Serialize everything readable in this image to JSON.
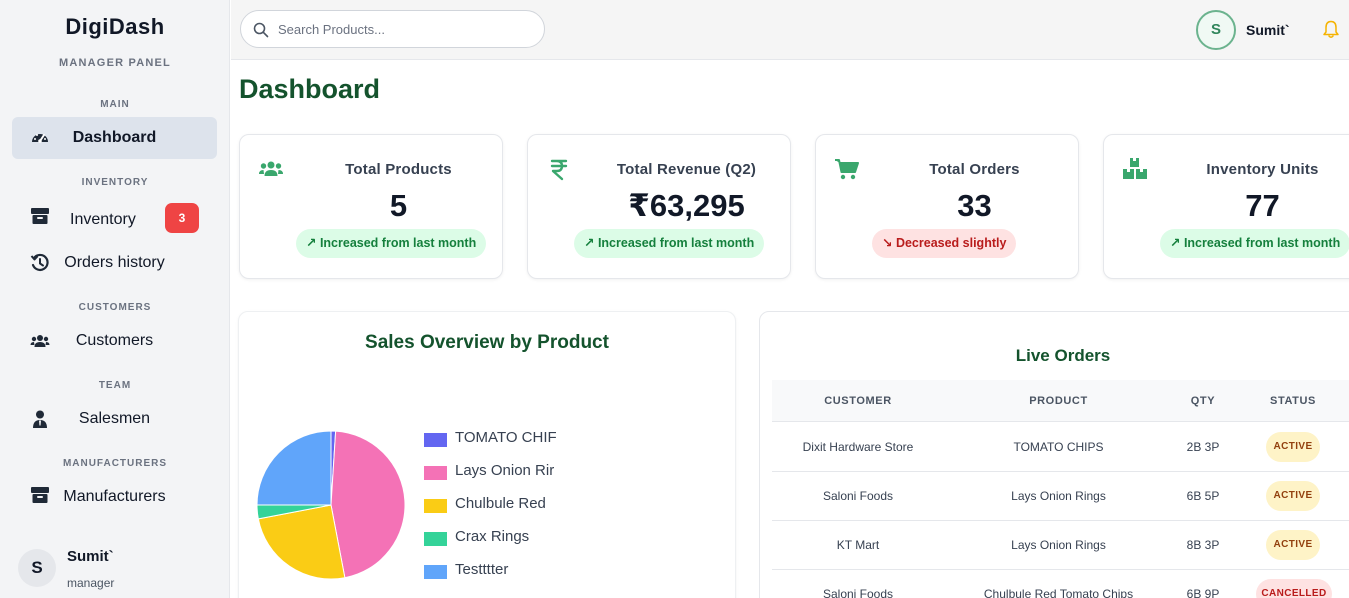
{
  "sidebar": {
    "brand": "DigiDash",
    "subtitle": "MANAGER PANEL",
    "sections": {
      "main": "MAIN",
      "inventory": "INVENTORY",
      "customers": "CUSTOMERS",
      "team": "TEAM",
      "manufacturers": "MANUFACTURERS"
    },
    "items": {
      "dashboard": "Dashboard",
      "inventory": "Inventory",
      "inventory_badge": "3",
      "orders_history": "Orders history",
      "customers": "Customers",
      "salesmen": "Salesmen",
      "manufacturers": "Manufacturers"
    },
    "user": {
      "initial": "S",
      "name": "Sumit`",
      "role": "manager"
    }
  },
  "header": {
    "search_placeholder": "Search Products...",
    "user_initial": "S",
    "user_name": "Sumit`"
  },
  "page_title": "Dashboard",
  "stats": [
    {
      "title": "Total Products",
      "value": "5",
      "trend": "↗ Increased from last month",
      "trend_type": "up",
      "icon": "users-icon"
    },
    {
      "title": "Total Revenue (Q2)",
      "value": "₹63,295",
      "trend": "↗ Increased from last month",
      "trend_type": "up",
      "icon": "rupee-icon"
    },
    {
      "title": "Total Orders",
      "value": "33",
      "trend": "↘ Decreased slightly",
      "trend_type": "down",
      "icon": "cart-icon"
    },
    {
      "title": "Inventory Units",
      "value": "77",
      "trend": "↗ Increased from last month",
      "trend_type": "up",
      "icon": "boxes-icon"
    }
  ],
  "sales_overview": {
    "title": "Sales Overview by Product"
  },
  "chart_data": {
    "type": "pie",
    "labels": [
      "TOMATO CHIPS",
      "Lays Onion Rings",
      "Chulbule Red Tomato Chips",
      "Crax Rings",
      "Testttter"
    ],
    "legend_visible_text": [
      "TOMATO CHIF",
      "Lays Onion Rir",
      "Chulbule Red ",
      "Crax Rings",
      "Testttter"
    ],
    "values": [
      1,
      46,
      25,
      3,
      25
    ],
    "colors": [
      "#6366f1",
      "#f472b6",
      "#facc15",
      "#34d399",
      "#60a5fa"
    ],
    "legend_position": "right"
  },
  "live_orders": {
    "title": "Live Orders",
    "columns": [
      "CUSTOMER",
      "PRODUCT",
      "QTY",
      "STATUS"
    ],
    "rows": [
      {
        "customer": "Dixit Hardware Store",
        "product": "TOMATO CHIPS",
        "qty": "2B 3P",
        "status": "ACTIVE",
        "status_type": "active"
      },
      {
        "customer": "Saloni Foods",
        "product": "Lays Onion Rings",
        "qty": "6B 5P",
        "status": "ACTIVE",
        "status_type": "active"
      },
      {
        "customer": "KT Mart",
        "product": "Lays Onion Rings",
        "qty": "8B 3P",
        "status": "ACTIVE",
        "status_type": "active"
      },
      {
        "customer": "Saloni Foods",
        "product": "Chulbule Red Tomato Chips",
        "qty": "6B 9P",
        "status": "CANCELLED",
        "status_type": "cancelled"
      }
    ]
  }
}
